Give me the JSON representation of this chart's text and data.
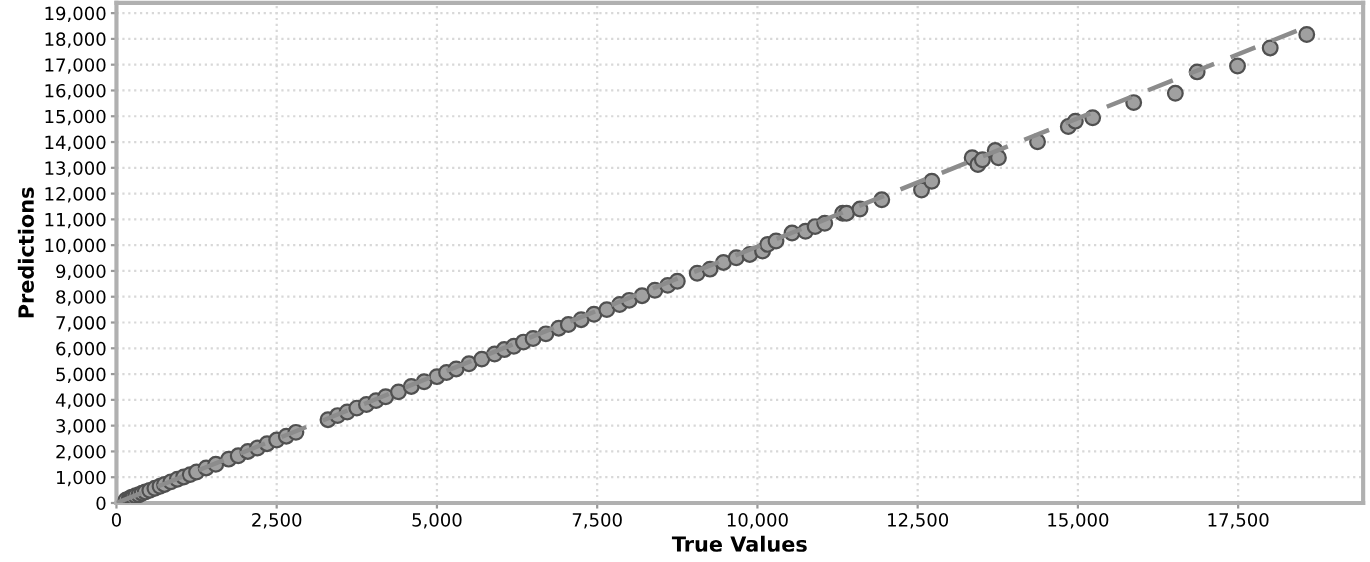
{
  "chart_data": {
    "type": "scatter",
    "xlabel": "True Values",
    "ylabel": "Predictions",
    "series": [
      {
        "color": "#a0a0a0",
        "x": [
          150,
          200,
          230,
          260,
          300,
          350,
          400,
          450,
          520,
          600,
          680,
          750,
          850,
          950,
          1050,
          1150,
          1250,
          1400,
          1550,
          1750,
          1900,
          2050,
          2200,
          2350,
          2500,
          2650,
          2800,
          3300,
          3450,
          3600,
          3750,
          3900,
          4050,
          4200,
          4400,
          4600,
          4800,
          5000,
          5150,
          5300,
          5500,
          5700,
          5900,
          6050,
          6200,
          6350,
          6500,
          6700,
          6900,
          7050,
          7250,
          7450,
          7650,
          7850,
          8000,
          8200,
          8400,
          8600,
          8750,
          9060,
          9260,
          9470,
          9670,
          9880,
          10080,
          10160,
          10290,
          10540,
          10750,
          10900,
          11050,
          11330,
          11390,
          11600,
          11940,
          12560,
          12720,
          13350,
          13440,
          13510,
          13710,
          13760,
          14370,
          14850,
          14960,
          15230,
          15870,
          16520,
          16860,
          17490,
          18000,
          18570
        ],
        "values": [
          120,
          170,
          210,
          230,
          280,
          320,
          380,
          430,
          490,
          570,
          650,
          720,
          820,
          920,
          1010,
          1100,
          1200,
          1360,
          1500,
          1700,
          1830,
          2000,
          2130,
          2300,
          2440,
          2590,
          2740,
          3230,
          3390,
          3530,
          3680,
          3820,
          3970,
          4120,
          4310,
          4520,
          4700,
          4900,
          5060,
          5200,
          5400,
          5580,
          5780,
          5950,
          6080,
          6240,
          6380,
          6560,
          6780,
          6920,
          7110,
          7320,
          7500,
          7700,
          7860,
          8040,
          8250,
          8440,
          8600,
          8910,
          9070,
          9330,
          9510,
          9640,
          9770,
          10030,
          10160,
          10470,
          10540,
          10720,
          10850,
          11240,
          11240,
          11400,
          11760,
          12140,
          12480,
          13390,
          13130,
          13310,
          13670,
          13390,
          14010,
          14600,
          14810,
          14940,
          15530,
          15890,
          16720,
          16950,
          17650,
          18170
        ]
      },
      {
        "type": "line",
        "color": "#8c8c8c",
        "line_style": "dashed",
        "marker": "none",
        "x": [
          0,
          18500
        ],
        "values": [
          0,
          18400
        ]
      }
    ],
    "xlim": [
      0,
      19450
    ],
    "ylim": [
      0,
      19400
    ],
    "xticks": [
      0,
      {
        "value": 2500,
        "label": "2,500"
      },
      {
        "value": 5000,
        "label": "5,000"
      },
      {
        "value": 7500,
        "label": "7,500"
      },
      {
        "value": 10000,
        "label": "10,000"
      },
      {
        "value": 12500,
        "label": "12,500"
      },
      {
        "value": 15000,
        "label": "15,000"
      },
      {
        "value": 17500,
        "label": "17,500"
      }
    ],
    "yticks": [
      0,
      {
        "value": 1000,
        "label": "1,000"
      },
      {
        "value": 2000,
        "label": "2,000"
      },
      {
        "value": 3000,
        "label": "3,000"
      },
      {
        "value": 4000,
        "label": "4,000"
      },
      {
        "value": 5000,
        "label": "5,000"
      },
      {
        "value": 6000,
        "label": "6,000"
      },
      {
        "value": 7000,
        "label": "7,000"
      },
      {
        "value": 8000,
        "label": "8,000"
      },
      {
        "value": 9000,
        "label": "9,000"
      },
      {
        "value": 10000,
        "label": "10,000"
      },
      {
        "value": 11000,
        "label": "11,000"
      },
      {
        "value": 12000,
        "label": "12,000"
      },
      {
        "value": 13000,
        "label": "13,000"
      },
      {
        "value": 14000,
        "label": "14,000"
      },
      {
        "value": 15000,
        "label": "15,000"
      },
      {
        "value": 16000,
        "label": "16,000"
      },
      {
        "value": 17000,
        "label": "17,000"
      },
      {
        "value": 18000,
        "label": "18,000"
      },
      {
        "value": 19000,
        "label": "19,000"
      }
    ],
    "grid": true,
    "marker": "circle",
    "legend": false
  }
}
